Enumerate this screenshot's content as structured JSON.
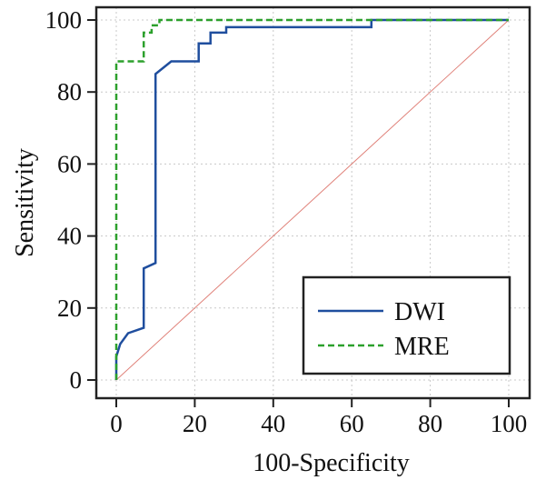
{
  "chart_data": {
    "type": "line",
    "xlabel": "100-Specificity",
    "ylabel": "Sensitivity",
    "xlim": [
      0,
      100
    ],
    "ylim": [
      0,
      100
    ],
    "xticks": [
      0,
      20,
      40,
      60,
      80,
      100
    ],
    "yticks": [
      0,
      20,
      40,
      60,
      80,
      100
    ],
    "grid": true,
    "legend_position": "bottom-right",
    "reference_line": {
      "x": [
        0,
        100
      ],
      "y": [
        0,
        100
      ],
      "color": "#e0827a"
    },
    "series": [
      {
        "name": "DWI",
        "color": "#1f4e9e",
        "dash": "solid",
        "x": [
          0,
          0,
          1,
          3,
          3,
          7,
          7,
          10,
          10,
          14,
          21,
          21,
          24,
          24,
          28,
          28,
          65,
          65,
          100
        ],
        "y": [
          0,
          6.5,
          10,
          13,
          13,
          14.5,
          31,
          32.5,
          85,
          88.5,
          88.5,
          93.5,
          93.5,
          96.5,
          96.5,
          98,
          98,
          100,
          100
        ]
      },
      {
        "name": "MRE",
        "color": "#2ca02c",
        "dash": "dashed",
        "x": [
          0,
          0,
          7,
          7,
          9,
          9,
          11,
          11,
          100
        ],
        "y": [
          0,
          88.5,
          88.5,
          96.5,
          96.5,
          98.5,
          98.5,
          100,
          100
        ]
      }
    ]
  }
}
